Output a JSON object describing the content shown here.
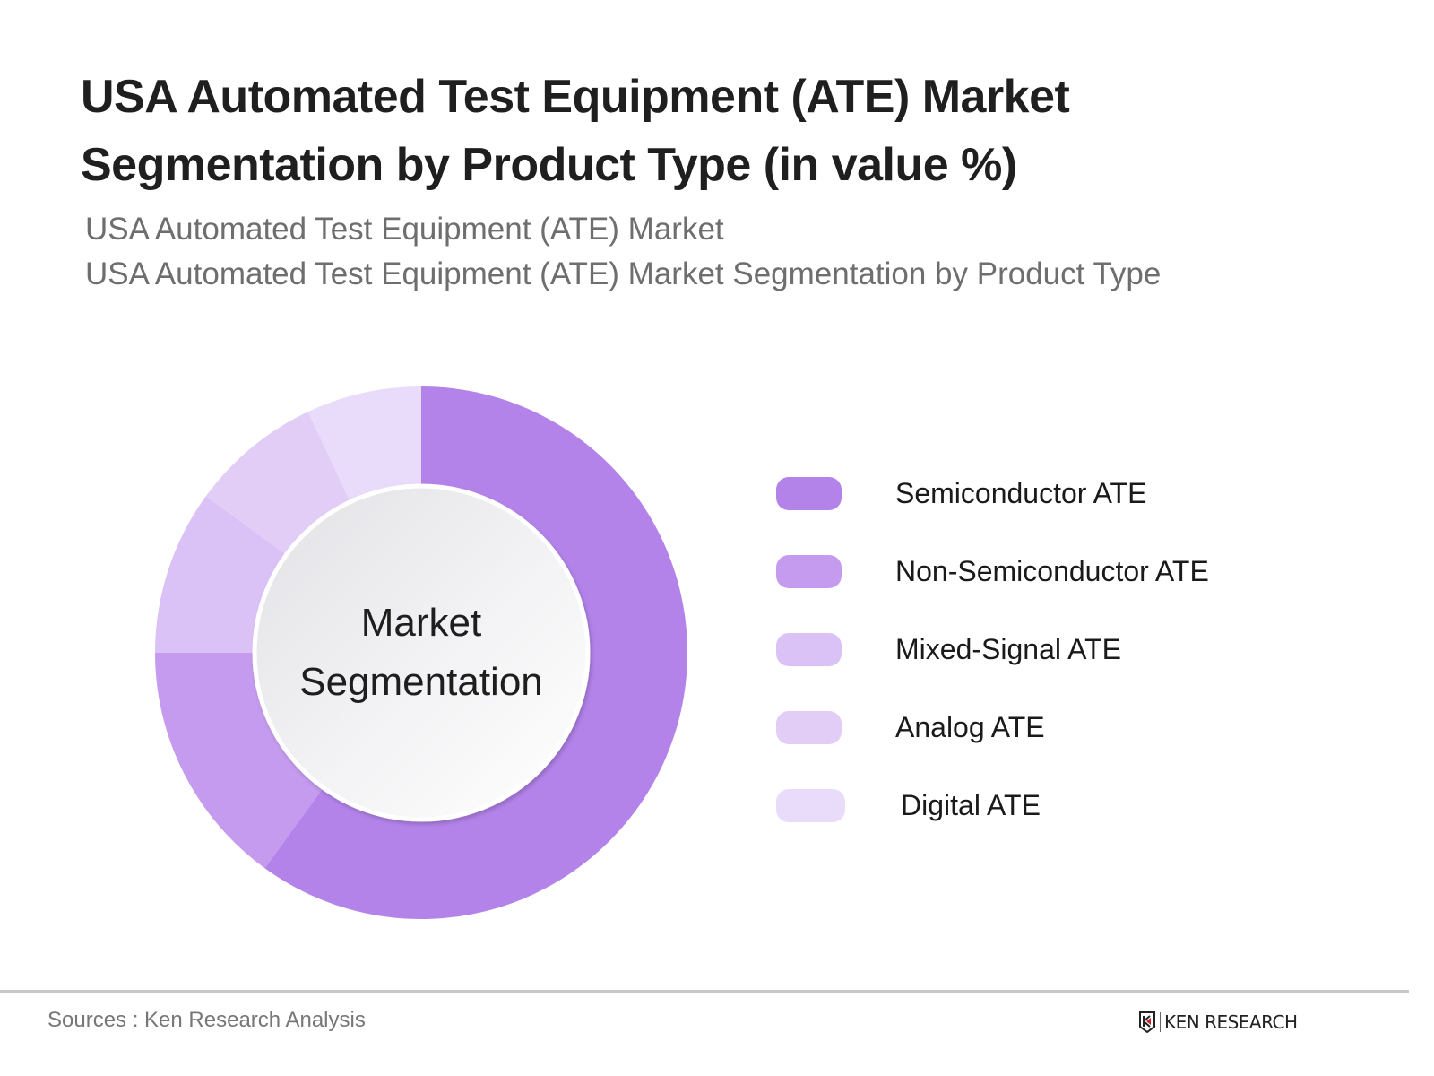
{
  "header": {
    "title": "USA Automated Test Equipment (ATE) Market Segmentation by Product Type (in value %)",
    "subtitle_1": "USA Automated Test Equipment (ATE) Market",
    "subtitle_2": "USA Automated Test Equipment (ATE) Market Segmentation by Product Type"
  },
  "chart": {
    "center_label_line1": "Market",
    "center_label_line2": "Segmentation"
  },
  "legend": [
    {
      "label": "Semiconductor ATE",
      "color": "#b383ea"
    },
    {
      "label": "Non-Semiconductor ATE",
      "color": "#c49bee"
    },
    {
      "label": "Mixed-Signal ATE",
      "color": "#dbc2f6"
    },
    {
      "label": "Analog ATE",
      "color": "#e1cdf6"
    },
    {
      "label": "Digital ATE",
      "color": "#e9dbfa"
    }
  ],
  "footer": {
    "source": "Sources : Ken Research Analysis",
    "logo_text": "KEN RESEARCH"
  },
  "chart_data": {
    "type": "pie",
    "variant": "donut",
    "title": "USA Automated Test Equipment (ATE) Market Segmentation by Product Type (in value %)",
    "subtitle": [
      "USA Automated Test Equipment (ATE) Market",
      "USA Automated Test Equipment (ATE) Market Segmentation by Product Type"
    ],
    "center_text": "Market Segmentation",
    "categories": [
      "Semiconductor ATE",
      "Non-Semiconductor ATE",
      "Mixed-Signal ATE",
      "Analog ATE",
      "Digital ATE"
    ],
    "values": [
      60,
      15,
      10,
      8,
      7
    ],
    "colors": [
      "#b383ea",
      "#c49bee",
      "#dbc2f6",
      "#e1cdf6",
      "#e9dbfa"
    ],
    "unit": "%",
    "start_angle": "12 o'clock, clockwise",
    "legend_position": "right",
    "data_labels": false,
    "source": "Sources : Ken Research Analysis"
  }
}
